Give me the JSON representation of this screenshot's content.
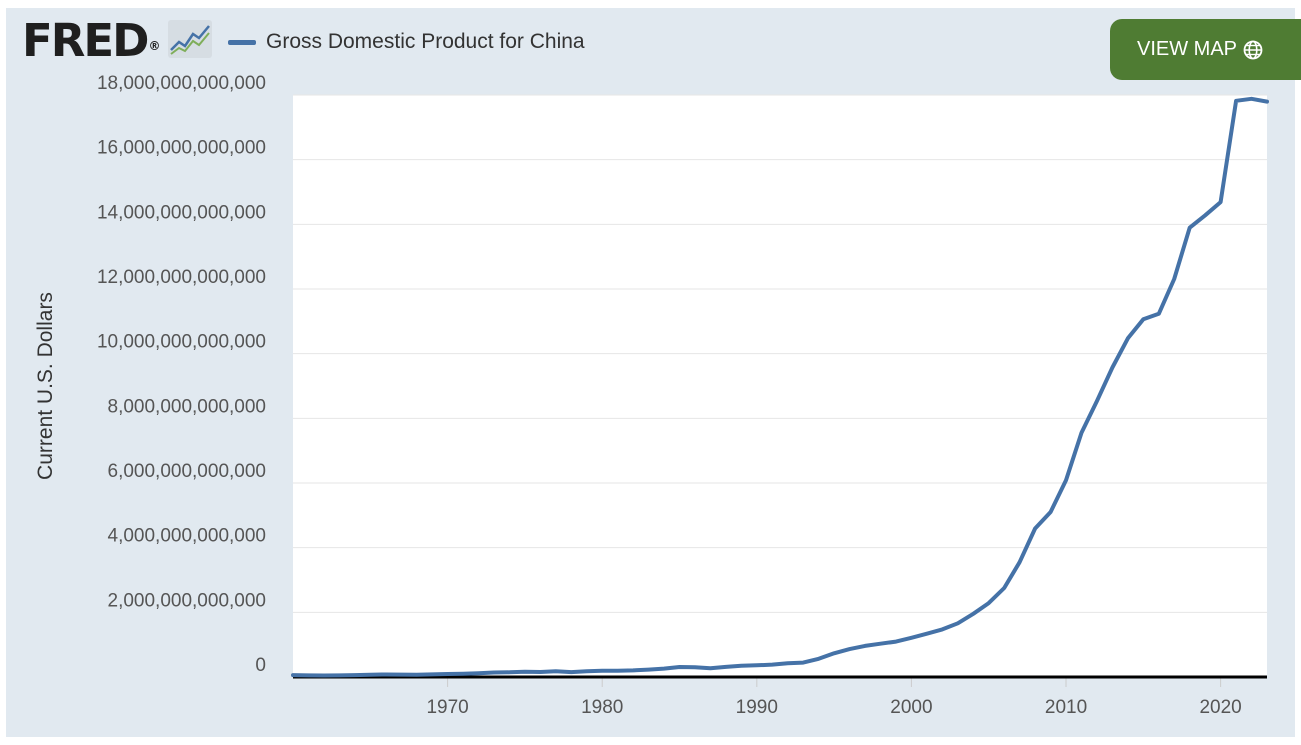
{
  "header": {
    "logo_text": "FRED",
    "logo_mark": "®",
    "logo_icon": "sparkline-icon",
    "view_map_label": "VIEW MAP",
    "view_map_icon": "globe-icon",
    "view_map_color": "#4f7c33"
  },
  "chart_data": {
    "type": "line",
    "title": "",
    "xlabel": "",
    "ylabel": "Current U.S. Dollars",
    "xlim": [
      1960,
      2023
    ],
    "ylim": [
      0,
      18000000000000
    ],
    "grid": true,
    "legend_placement": "top-left",
    "x_ticks": [
      1970,
      1980,
      1990,
      2000,
      2010,
      2020
    ],
    "x_tick_labels": [
      "1970",
      "1980",
      "1990",
      "2000",
      "2010",
      "2020"
    ],
    "y_ticks": [
      0,
      2000000000000,
      4000000000000,
      6000000000000,
      8000000000000,
      10000000000000,
      12000000000000,
      14000000000000,
      16000000000000,
      18000000000000
    ],
    "y_tick_labels": [
      "0",
      "2,000,000,000,000",
      "4,000,000,000,000",
      "6,000,000,000,000",
      "8,000,000,000,000",
      "10,000,000,000,000",
      "12,000,000,000,000",
      "14,000,000,000,000",
      "16,000,000,000,000",
      "18,000,000,000,000"
    ],
    "series": [
      {
        "name": "Gross Domestic Product for China",
        "color": "#4572a7",
        "x": [
          1960,
          1961,
          1962,
          1963,
          1964,
          1965,
          1966,
          1967,
          1968,
          1969,
          1970,
          1971,
          1972,
          1973,
          1974,
          1975,
          1976,
          1977,
          1978,
          1979,
          1980,
          1981,
          1982,
          1983,
          1984,
          1985,
          1986,
          1987,
          1988,
          1989,
          1990,
          1991,
          1992,
          1993,
          1994,
          1995,
          1996,
          1997,
          1998,
          1999,
          2000,
          2001,
          2002,
          2003,
          2004,
          2005,
          2006,
          2007,
          2008,
          2009,
          2010,
          2011,
          2012,
          2013,
          2014,
          2015,
          2016,
          2017,
          2018,
          2019,
          2020,
          2021,
          2022,
          2023
        ],
        "values": [
          60000000000,
          50000000000,
          47000000000,
          51000000000,
          60000000000,
          70000000000,
          76000000000,
          73000000000,
          71000000000,
          80000000000,
          93000000000,
          100000000000,
          114000000000,
          139000000000,
          144000000000,
          163000000000,
          154000000000,
          175000000000,
          150000000000,
          178000000000,
          191000000000,
          196000000000,
          205000000000,
          230000000000,
          260000000000,
          310000000000,
          301000000000,
          273000000000,
          313000000000,
          348000000000,
          361000000000,
          383000000000,
          427000000000,
          445000000000,
          564000000000,
          734000000000,
          864000000000,
          962000000000,
          1029000000000,
          1094000000000,
          1211000000000,
          1340000000000,
          1471000000000,
          1660000000000,
          1956000000000,
          2286000000000,
          2752000000000,
          3550000000000,
          4594000000000,
          5102000000000,
          6087000000000,
          7552000000000,
          8532000000000,
          9571000000000,
          10476000000000,
          11062000000000,
          11233000000000,
          12310000000000,
          13895000000000,
          14280000000000,
          14688000000000,
          17820000000000,
          17882000000000,
          17795000000000
        ]
      }
    ]
  }
}
